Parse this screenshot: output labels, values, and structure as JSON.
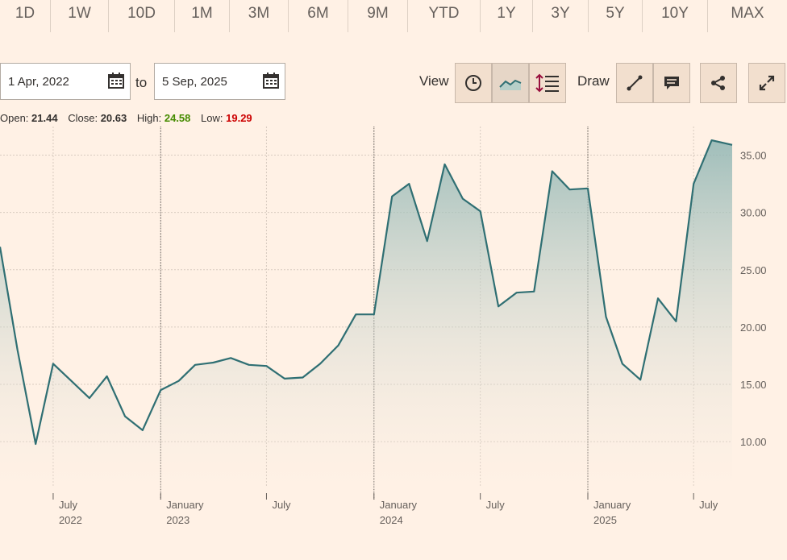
{
  "ranges": [
    "1D",
    "1W",
    "10D",
    "1M",
    "3M",
    "6M",
    "9M",
    "YTD",
    "1Y",
    "3Y",
    "5Y",
    "10Y",
    "MAX"
  ],
  "date_range": {
    "from": "1 Apr, 2022",
    "to_label": "to",
    "to": "5 Sep, 2025"
  },
  "toolbar": {
    "view_label": "View",
    "draw_label": "Draw"
  },
  "ohlc": {
    "open_label": "Open:",
    "open": "21.44",
    "close_label": "Close:",
    "close": "20.63",
    "high_label": "High:",
    "high": "24.58",
    "low_label": "Low:",
    "low": "19.29"
  },
  "colors": {
    "line": "#2f6f73",
    "high": "#458b00",
    "low": "#cc0000",
    "background": "#fff1e5"
  },
  "icons": [
    "calendar-icon",
    "clock-icon",
    "area-chart-icon",
    "indicators-icon",
    "draw-line-icon",
    "annotation-icon",
    "share-icon",
    "expand-icon"
  ],
  "chart_data": {
    "type": "area",
    "x": [
      "2022-04-01",
      "2022-05-01",
      "2022-06-01",
      "2022-07-01",
      "2022-08-01",
      "2022-09-01",
      "2022-10-01",
      "2022-11-01",
      "2022-12-01",
      "2023-01-01",
      "2023-02-01",
      "2023-03-01",
      "2023-04-01",
      "2023-05-01",
      "2023-06-01",
      "2023-07-01",
      "2023-08-01",
      "2023-09-01",
      "2023-10-01",
      "2023-11-01",
      "2023-12-01",
      "2024-01-01",
      "2024-02-01",
      "2024-03-01",
      "2024-04-01",
      "2024-05-01",
      "2024-06-01",
      "2024-07-01",
      "2024-08-01",
      "2024-09-01",
      "2024-10-01",
      "2024-11-01",
      "2024-12-01",
      "2025-01-01",
      "2025-02-01",
      "2025-03-01",
      "2025-04-01",
      "2025-05-01",
      "2025-06-01",
      "2025-07-01",
      "2025-08-01",
      "2025-09-05"
    ],
    "values": [
      27.0,
      18.0,
      9.8,
      16.8,
      15.3,
      13.8,
      15.7,
      12.2,
      11.0,
      14.5,
      15.3,
      16.7,
      16.9,
      17.3,
      16.7,
      16.6,
      15.5,
      15.6,
      16.8,
      18.4,
      21.1,
      21.1,
      31.4,
      32.5,
      27.5,
      34.2,
      31.2,
      30.1,
      21.8,
      23.0,
      23.1,
      33.6,
      32.0,
      32.1,
      20.9,
      16.8,
      15.4,
      22.5,
      20.5,
      32.5,
      36.3,
      35.9
    ],
    "y_ticks": [
      "35.00",
      "30.00",
      "25.00",
      "20.00",
      "15.00",
      "10.00"
    ],
    "y_tick_values": [
      35,
      30,
      25,
      20,
      15,
      10
    ],
    "ylim": [
      6,
      37.5
    ],
    "x_ticks": [
      {
        "date": "2022-07-01",
        "month": "July",
        "year": "2022"
      },
      {
        "date": "2023-01-01",
        "month": "January",
        "year": "2023"
      },
      {
        "date": "2023-07-01",
        "month": "July",
        "year": ""
      },
      {
        "date": "2024-01-01",
        "month": "January",
        "year": "2024"
      },
      {
        "date": "2024-07-01",
        "month": "July",
        "year": ""
      },
      {
        "date": "2025-01-01",
        "month": "January",
        "year": "2025"
      },
      {
        "date": "2025-07-01",
        "month": "July",
        "year": ""
      }
    ],
    "year_separators": [
      "2023-01-01",
      "2024-01-01",
      "2025-01-01"
    ],
    "grid": true
  }
}
